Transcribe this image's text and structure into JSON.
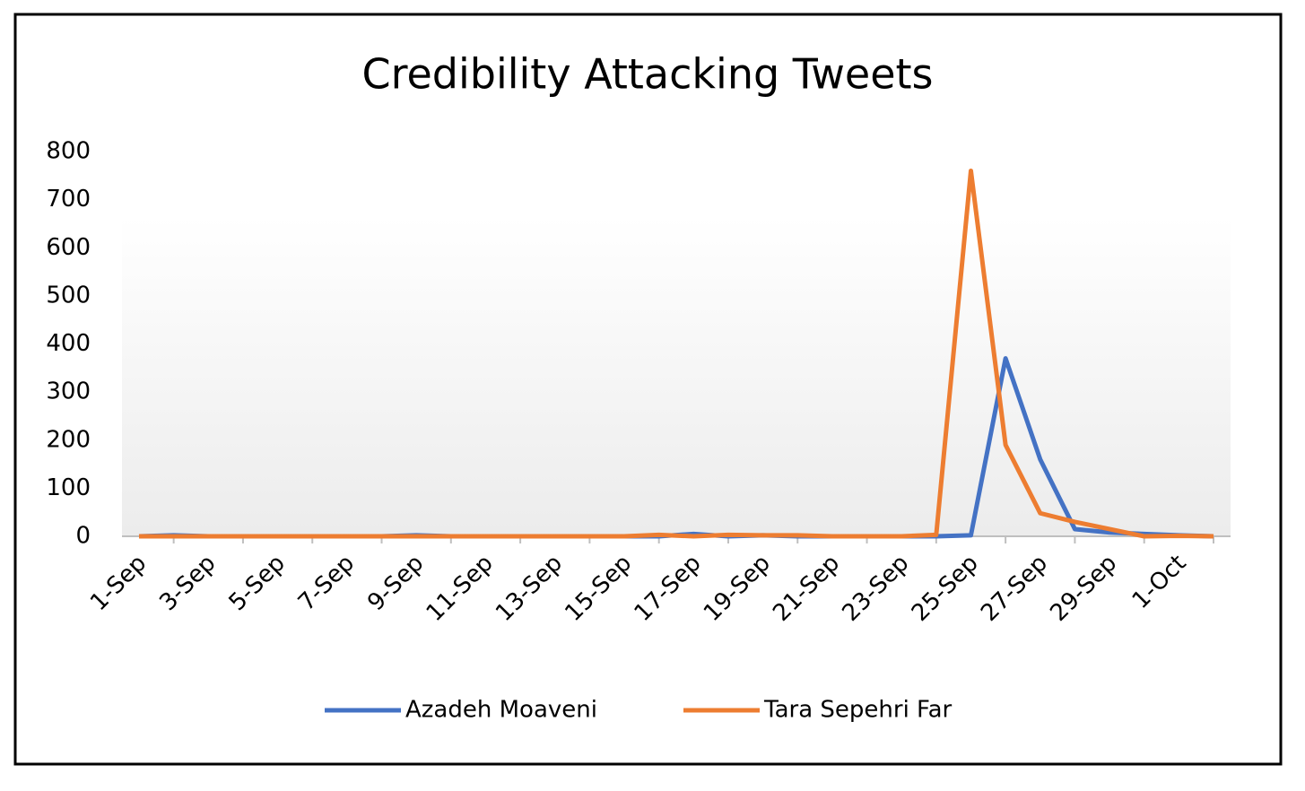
{
  "chart_data": {
    "type": "line",
    "title": "Credibility Attacking Tweets",
    "categories": [
      "1-Sep",
      null,
      "3-Sep",
      null,
      "5-Sep",
      null,
      "7-Sep",
      null,
      "9-Sep",
      null,
      "11-Sep",
      null,
      "13-Sep",
      null,
      "15-Sep",
      null,
      "17-Sep",
      null,
      "19-Sep",
      null,
      "21-Sep",
      null,
      "23-Sep",
      null,
      "25-Sep",
      null,
      "27-Sep",
      null,
      "29-Sep",
      null,
      "1-Oct",
      null
    ],
    "series": [
      {
        "name": "Azadeh Moaveni",
        "color": "#4472c4",
        "values": [
          0,
          2,
          0,
          0,
          0,
          0,
          0,
          0,
          2,
          0,
          0,
          0,
          0,
          0,
          0,
          0,
          5,
          0,
          2,
          0,
          0,
          0,
          0,
          0,
          2,
          370,
          160,
          15,
          8,
          5,
          2,
          0
        ]
      },
      {
        "name": "Tara Sepehri Far",
        "color": "#ed7d31",
        "values": [
          0,
          0,
          0,
          0,
          0,
          0,
          0,
          0,
          0,
          0,
          0,
          0,
          0,
          0,
          0,
          3,
          0,
          3,
          2,
          2,
          0,
          0,
          0,
          3,
          760,
          190,
          48,
          30,
          15,
          0,
          1,
          0
        ]
      }
    ],
    "ylim": [
      0,
      800
    ],
    "yticks": [
      0,
      100,
      200,
      300,
      400,
      500,
      600,
      700,
      800
    ],
    "legend": "bottom"
  }
}
